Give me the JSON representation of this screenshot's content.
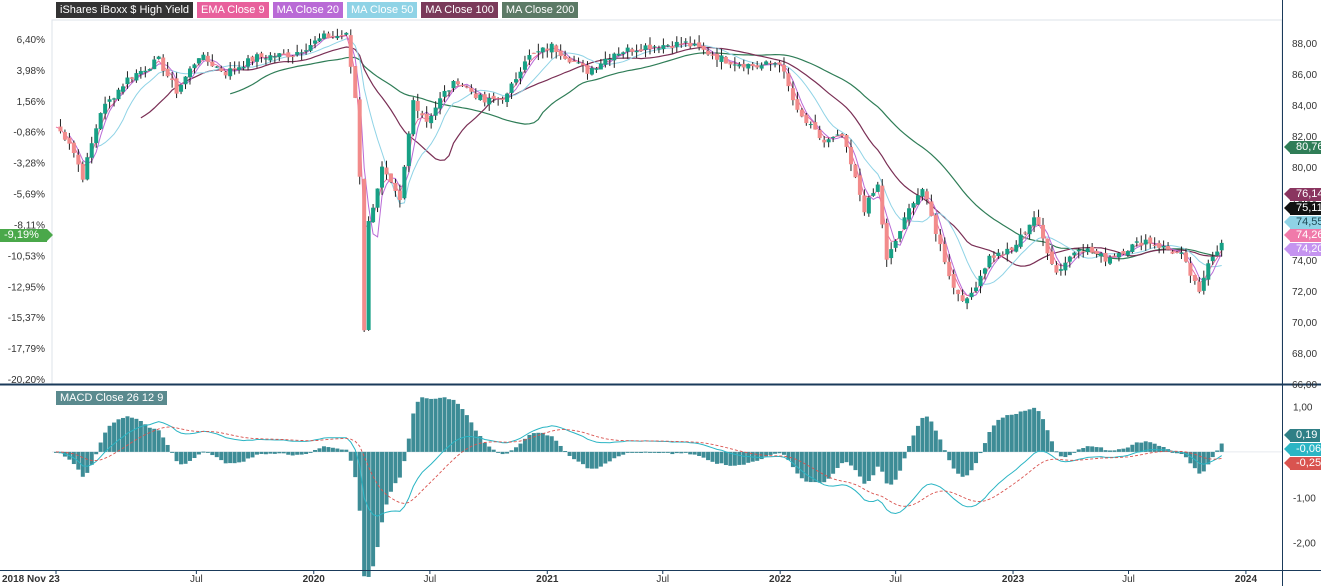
{
  "legend": {
    "main": "iShares iBoxx $ High Yield",
    "ema9": "EMA Close 9",
    "ma20": "MA Close 20",
    "ma50": "MA Close 50",
    "ma100": "MA Close 100",
    "ma200": "MA Close 200",
    "macd": "MACD Close 26 12 9"
  },
  "colors": {
    "up": "#17a085",
    "down": "#f28b8b",
    "wick": "#222222",
    "ema9": "#e8609c",
    "ma20": "#b96ad6",
    "ma50": "#8fd3e6",
    "ma100": "#7a2f55",
    "ma200": "#2f7d57",
    "macd_line": "#2bb5c4",
    "signal": "#d9534f",
    "hist": "#3d8c96"
  },
  "price_tags": {
    "ma200": "80,76",
    "ma100": "76,14",
    "last": "75,11",
    "ma50": "74,55",
    "ema9": "74,26",
    "ma20": "74,20",
    "pct_last": "-9,19%"
  },
  "macd_tags": {
    "hist": "0,19",
    "macd": "-0,06",
    "signal": "-0,25"
  },
  "chart_data": {
    "type": "candlestick",
    "title": "iShares iBoxx $ High Yield",
    "x_ticks": [
      "2018 Nov 23",
      "Jul",
      "2020",
      "Jul",
      "2021",
      "Jul",
      "2022",
      "Jul",
      "2023",
      "Jul",
      "2024"
    ],
    "x_tick_dates": [
      "2018-11-23",
      "2019-07-01",
      "2020-01-01",
      "2020-07-01",
      "2021-01-01",
      "2021-07-01",
      "2022-01-01",
      "2022-07-01",
      "2023-01-01",
      "2023-07-01",
      "2024-01-01"
    ],
    "y_right_ticks": [
      "88,00",
      "86,00",
      "84,00",
      "82,00",
      "80,00",
      "78,00",
      "76,00",
      "74,00",
      "72,00",
      "70,00",
      "68,00",
      "66,00"
    ],
    "y_right_range": [
      66,
      89.5
    ],
    "y_left_ticks": [
      "6,40%",
      "3,98%",
      "1,56%",
      "-0,86%",
      "-3,28%",
      "-5,69%",
      "-8,11%",
      "-10,53%",
      "-12,95%",
      "-15,37%",
      "-17,79%",
      "-20,20%"
    ],
    "close_anchors": [
      [
        "2018-11-23",
        82.6
      ],
      [
        "2018-12-15",
        81.6
      ],
      [
        "2019-01-04",
        79.4
      ],
      [
        "2019-02-01",
        83.6
      ],
      [
        "2019-03-15",
        85.7
      ],
      [
        "2019-05-03",
        86.9
      ],
      [
        "2019-05-31",
        84.9
      ],
      [
        "2019-07-05",
        87.2
      ],
      [
        "2019-08-16",
        86.1
      ],
      [
        "2019-10-04",
        87.1
      ],
      [
        "2019-11-29",
        87.3
      ],
      [
        "2020-01-17",
        88.4
      ],
      [
        "2020-02-21",
        88.5
      ],
      [
        "2020-03-06",
        84.5
      ],
      [
        "2020-03-13",
        79.5
      ],
      [
        "2020-03-20",
        69.6
      ],
      [
        "2020-03-27",
        76.4
      ],
      [
        "2020-04-17",
        79.9
      ],
      [
        "2020-05-15",
        77.7
      ],
      [
        "2020-06-05",
        84.3
      ],
      [
        "2020-06-26",
        83.0
      ],
      [
        "2020-07-24",
        84.8
      ],
      [
        "2020-08-14",
        85.6
      ],
      [
        "2020-09-25",
        84.2
      ],
      [
        "2020-10-30",
        84.6
      ],
      [
        "2020-11-27",
        87.0
      ],
      [
        "2021-01-08",
        87.8
      ],
      [
        "2021-03-05",
        86.2
      ],
      [
        "2021-04-16",
        87.4
      ],
      [
        "2021-06-04",
        87.8
      ],
      [
        "2021-08-06",
        88.0
      ],
      [
        "2021-10-08",
        86.9
      ],
      [
        "2021-11-26",
        86.5
      ],
      [
        "2021-12-31",
        86.8
      ],
      [
        "2022-01-28",
        83.5
      ],
      [
        "2022-03-11",
        81.6
      ],
      [
        "2022-04-08",
        82.0
      ],
      [
        "2022-05-13",
        77.3
      ],
      [
        "2022-06-03",
        78.8
      ],
      [
        "2022-06-17",
        73.9
      ],
      [
        "2022-07-29",
        77.9
      ],
      [
        "2022-08-12",
        78.6
      ],
      [
        "2022-09-30",
        72.2
      ],
      [
        "2022-10-21",
        71.3
      ],
      [
        "2022-11-25",
        74.2
      ],
      [
        "2022-12-30",
        74.6
      ],
      [
        "2023-02-03",
        76.8
      ],
      [
        "2023-03-10",
        73.2
      ],
      [
        "2023-04-14",
        74.9
      ],
      [
        "2023-05-26",
        74.1
      ],
      [
        "2023-07-28",
        75.3
      ],
      [
        "2023-09-22",
        74.3
      ],
      [
        "2023-10-20",
        71.8
      ],
      [
        "2023-11-03",
        74.0
      ],
      [
        "2023-11-24",
        75.1
      ]
    ],
    "series": [
      {
        "name": "EMA Close 9",
        "value_last": 74.26
      },
      {
        "name": "MA Close 20",
        "value_last": 74.2
      },
      {
        "name": "MA Close 50",
        "value_last": 74.55
      },
      {
        "name": "MA Close 100",
        "value_last": 76.14
      },
      {
        "name": "MA Close 200",
        "value_last": 80.76
      }
    ],
    "last_close": 75.11,
    "last_change_pct": -9.19,
    "macd": {
      "name": "MACD Close 26 12 9",
      "y_ticks": [
        "1,00",
        "-1,00",
        "-2,00"
      ],
      "y_range": [
        -2.6,
        1.45
      ],
      "last": {
        "histogram": 0.19,
        "macd": -0.06,
        "signal": -0.25
      }
    }
  }
}
